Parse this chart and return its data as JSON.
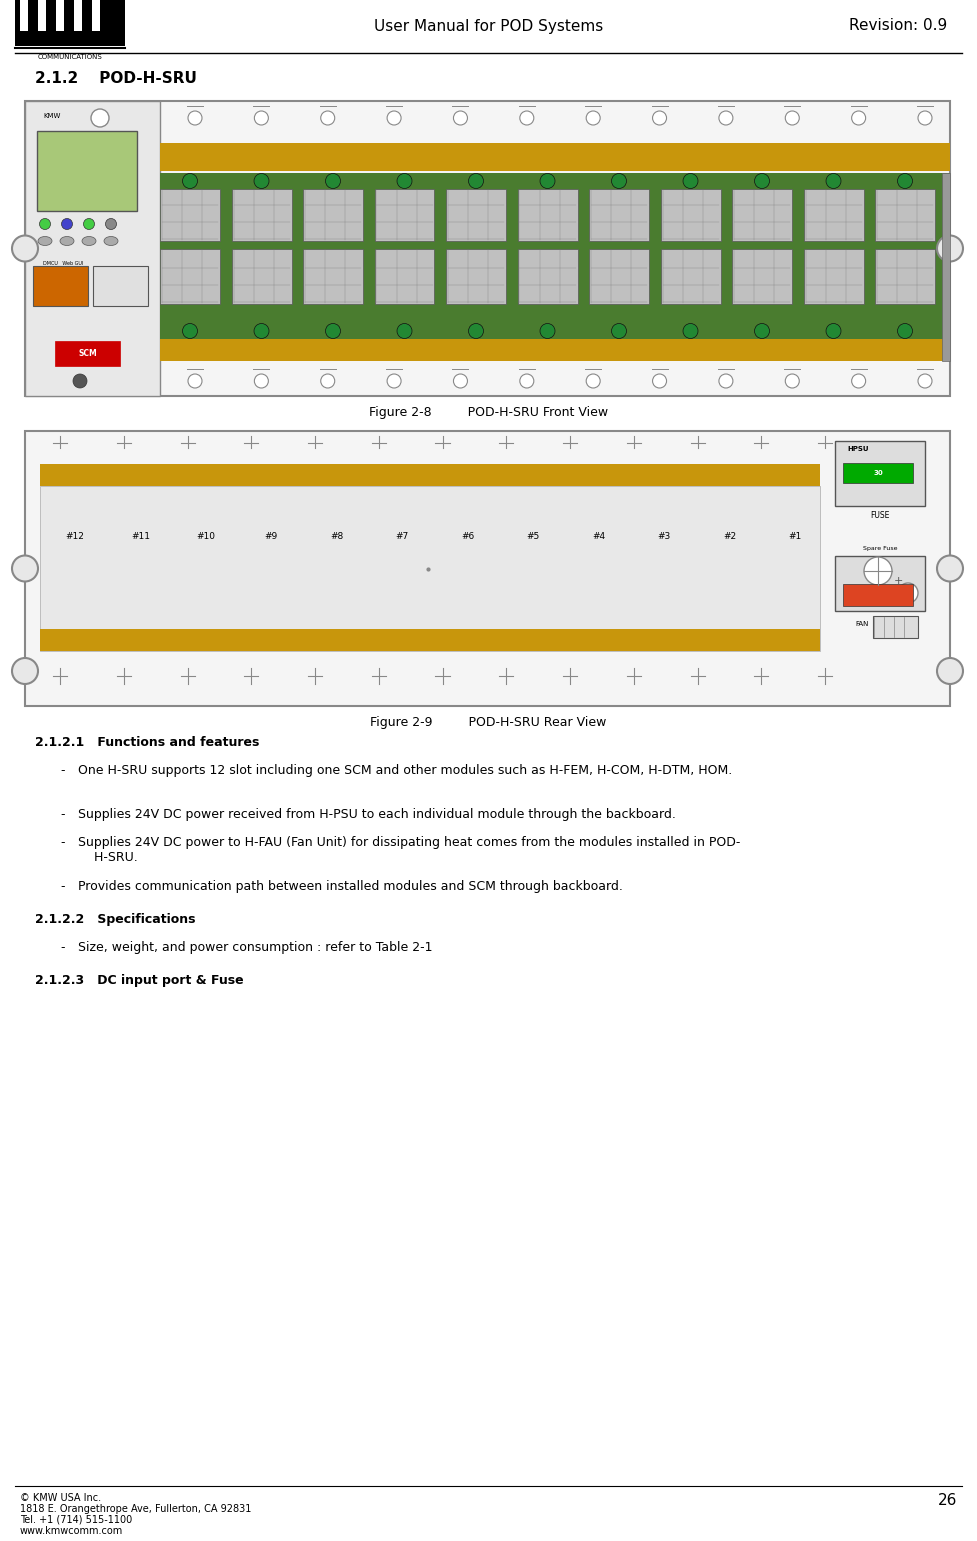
{
  "page_width": 9.77,
  "page_height": 15.41,
  "dpi": 100,
  "bg_color": "#ffffff",
  "header_title": "User Manual for POD Systems",
  "header_revision": "Revision: 0.9",
  "page_number": "26",
  "section_title": "2.1.2    POD-H-SRU",
  "figure8_caption": "Figure 2-8         POD-H-SRU Front View",
  "figure9_caption": "Figure 2-9         POD-H-SRU Rear View",
  "section_211_title": "2.1.2.1   Functions and features",
  "section_211_bullets": [
    "One H-SRU supports 12 slot including one SCM and other modules such as H-FEM, H-COM, H-DTM, HOM.",
    "Supplies 24V DC power received from H-PSU to each individual module through the backboard.",
    "Supplies 24V DC power to H-FAU (Fan Unit) for dissipating heat comes from the modules installed in POD-\n    H-SRU.",
    "Provides communication path between installed modules and SCM through backboard."
  ],
  "section_212_title": "2.1.2.2   Specifications",
  "section_212_bullets": [
    "Size, weight, and power consumption : refer to Table 2-1"
  ],
  "section_213_title": "2.1.2.3   DC input port & Fuse",
  "footer_line1": "© KMW USA Inc.",
  "footer_line2": "1818 E. Orangethrope Ave, Fullerton, CA 92831",
  "footer_line3": "Tel. +1 (714) 515-1100",
  "footer_line4": "www.kmwcomm.com",
  "colors": {
    "green_pcb": "#4a7c2f",
    "gold_stripe": "#c8960c",
    "light_green_scm": "#a8c878",
    "gray_module": "#c0c0c0",
    "dark_gray": "#808080",
    "border_gray": "#aaaaaa",
    "white": "#ffffff",
    "black": "#000000",
    "red_scm": "#cc0000",
    "orange_connector": "#cc6600",
    "blue_led": "#4444cc",
    "green_led": "#44cc44",
    "hpsu_green": "#00aa00"
  }
}
